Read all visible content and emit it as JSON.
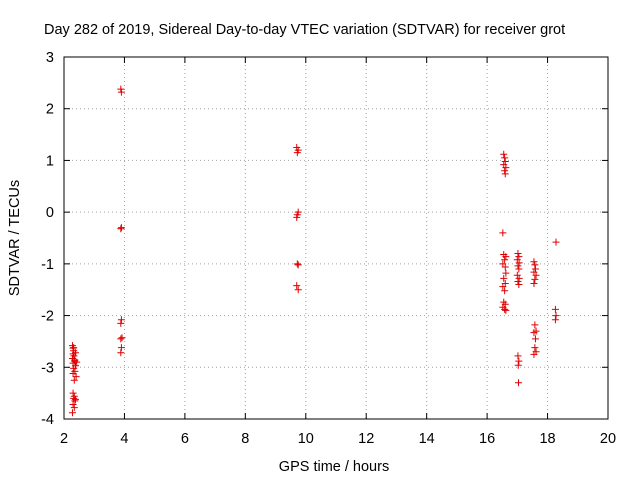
{
  "chart_data": {
    "type": "scatter",
    "title": "Day 282 of 2019, Sidereal Day-to-day VTEC variation (SDTVAR) for receiver grot",
    "xlabel": "GPS time / hours",
    "ylabel": "SDTVAR / TECUs",
    "xlim": [
      2,
      20
    ],
    "ylim": [
      -4,
      3
    ],
    "xticks": [
      "2",
      "4",
      "6",
      "8",
      "10",
      "12",
      "14",
      "16",
      "18",
      "20"
    ],
    "yticks": [
      "-4",
      "-3",
      "-2",
      "-1",
      "0",
      "1",
      "2",
      "3"
    ],
    "grid": true,
    "marker": "+",
    "color": "#e00000",
    "series": [
      {
        "name": "SDTVAR",
        "points": [
          [
            2.28,
            -2.58
          ],
          [
            2.3,
            -2.63
          ],
          [
            2.32,
            -2.68
          ],
          [
            2.3,
            -2.74
          ],
          [
            2.33,
            -2.78
          ],
          [
            2.28,
            -2.83
          ],
          [
            2.35,
            -2.88
          ],
          [
            2.3,
            -2.92
          ],
          [
            2.38,
            -2.97
          ],
          [
            2.32,
            -3.02
          ],
          [
            2.36,
            -3.08
          ],
          [
            2.3,
            -3.12
          ],
          [
            2.4,
            -3.18
          ],
          [
            2.34,
            -3.25
          ],
          [
            2.38,
            -2.72
          ],
          [
            2.36,
            -2.86
          ],
          [
            2.42,
            -2.9
          ],
          [
            2.32,
            -2.62
          ],
          [
            2.3,
            -3.5
          ],
          [
            2.34,
            -3.56
          ],
          [
            2.32,
            -3.6
          ],
          [
            2.36,
            -3.65
          ],
          [
            2.3,
            -3.72
          ],
          [
            2.34,
            -3.78
          ],
          [
            2.28,
            -3.88
          ],
          [
            2.38,
            -3.62
          ],
          [
            3.88,
            2.38
          ],
          [
            3.9,
            2.32
          ],
          [
            3.9,
            -0.3
          ],
          [
            3.88,
            -0.32
          ],
          [
            3.9,
            -2.08
          ],
          [
            3.88,
            -2.15
          ],
          [
            3.92,
            -2.43
          ],
          [
            3.88,
            -2.45
          ],
          [
            3.9,
            -2.62
          ],
          [
            3.88,
            -2.72
          ],
          [
            9.7,
            1.25
          ],
          [
            9.75,
            1.2
          ],
          [
            9.72,
            1.15
          ],
          [
            9.75,
            0.0
          ],
          [
            9.72,
            -0.05
          ],
          [
            9.7,
            -0.1
          ],
          [
            9.72,
            -1.0
          ],
          [
            9.75,
            -1.02
          ],
          [
            9.7,
            -1.42
          ],
          [
            9.75,
            -1.5
          ],
          [
            16.55,
            1.12
          ],
          [
            16.58,
            1.05
          ],
          [
            16.6,
            0.98
          ],
          [
            16.55,
            0.92
          ],
          [
            16.62,
            0.86
          ],
          [
            16.58,
            0.8
          ],
          [
            16.6,
            0.74
          ],
          [
            16.52,
            -0.4
          ],
          [
            16.55,
            -0.82
          ],
          [
            16.62,
            -0.86
          ],
          [
            16.58,
            -0.92
          ],
          [
            16.52,
            -1.0
          ],
          [
            16.6,
            -1.06
          ],
          [
            16.62,
            -1.18
          ],
          [
            16.55,
            -1.28
          ],
          [
            16.6,
            -1.38
          ],
          [
            16.52,
            -1.44
          ],
          [
            16.58,
            -1.52
          ],
          [
            16.55,
            -1.74
          ],
          [
            16.6,
            -1.78
          ],
          [
            16.52,
            -1.84
          ],
          [
            16.58,
            -1.88
          ],
          [
            16.62,
            -1.9
          ],
          [
            17.02,
            -0.8
          ],
          [
            17.05,
            -0.86
          ],
          [
            17.0,
            -0.92
          ],
          [
            17.06,
            -0.98
          ],
          [
            17.02,
            -1.04
          ],
          [
            17.05,
            -1.1
          ],
          [
            17.0,
            -1.22
          ],
          [
            17.06,
            -1.28
          ],
          [
            17.02,
            -1.34
          ],
          [
            17.05,
            -1.4
          ],
          [
            17.02,
            -2.78
          ],
          [
            17.05,
            -2.88
          ],
          [
            17.03,
            -2.96
          ],
          [
            17.04,
            -3.3
          ],
          [
            17.55,
            -0.96
          ],
          [
            17.58,
            -1.02
          ],
          [
            17.6,
            -1.1
          ],
          [
            17.55,
            -1.16
          ],
          [
            17.62,
            -1.22
          ],
          [
            17.58,
            -1.3
          ],
          [
            17.55,
            -1.38
          ],
          [
            17.58,
            -2.18
          ],
          [
            17.62,
            -2.3
          ],
          [
            17.55,
            -2.33
          ],
          [
            17.6,
            -2.45
          ],
          [
            17.58,
            -2.62
          ],
          [
            17.62,
            -2.7
          ],
          [
            17.55,
            -2.75
          ],
          [
            18.28,
            -0.58
          ],
          [
            18.26,
            -1.88
          ],
          [
            18.28,
            -2.0
          ],
          [
            18.26,
            -2.08
          ]
        ]
      }
    ]
  }
}
